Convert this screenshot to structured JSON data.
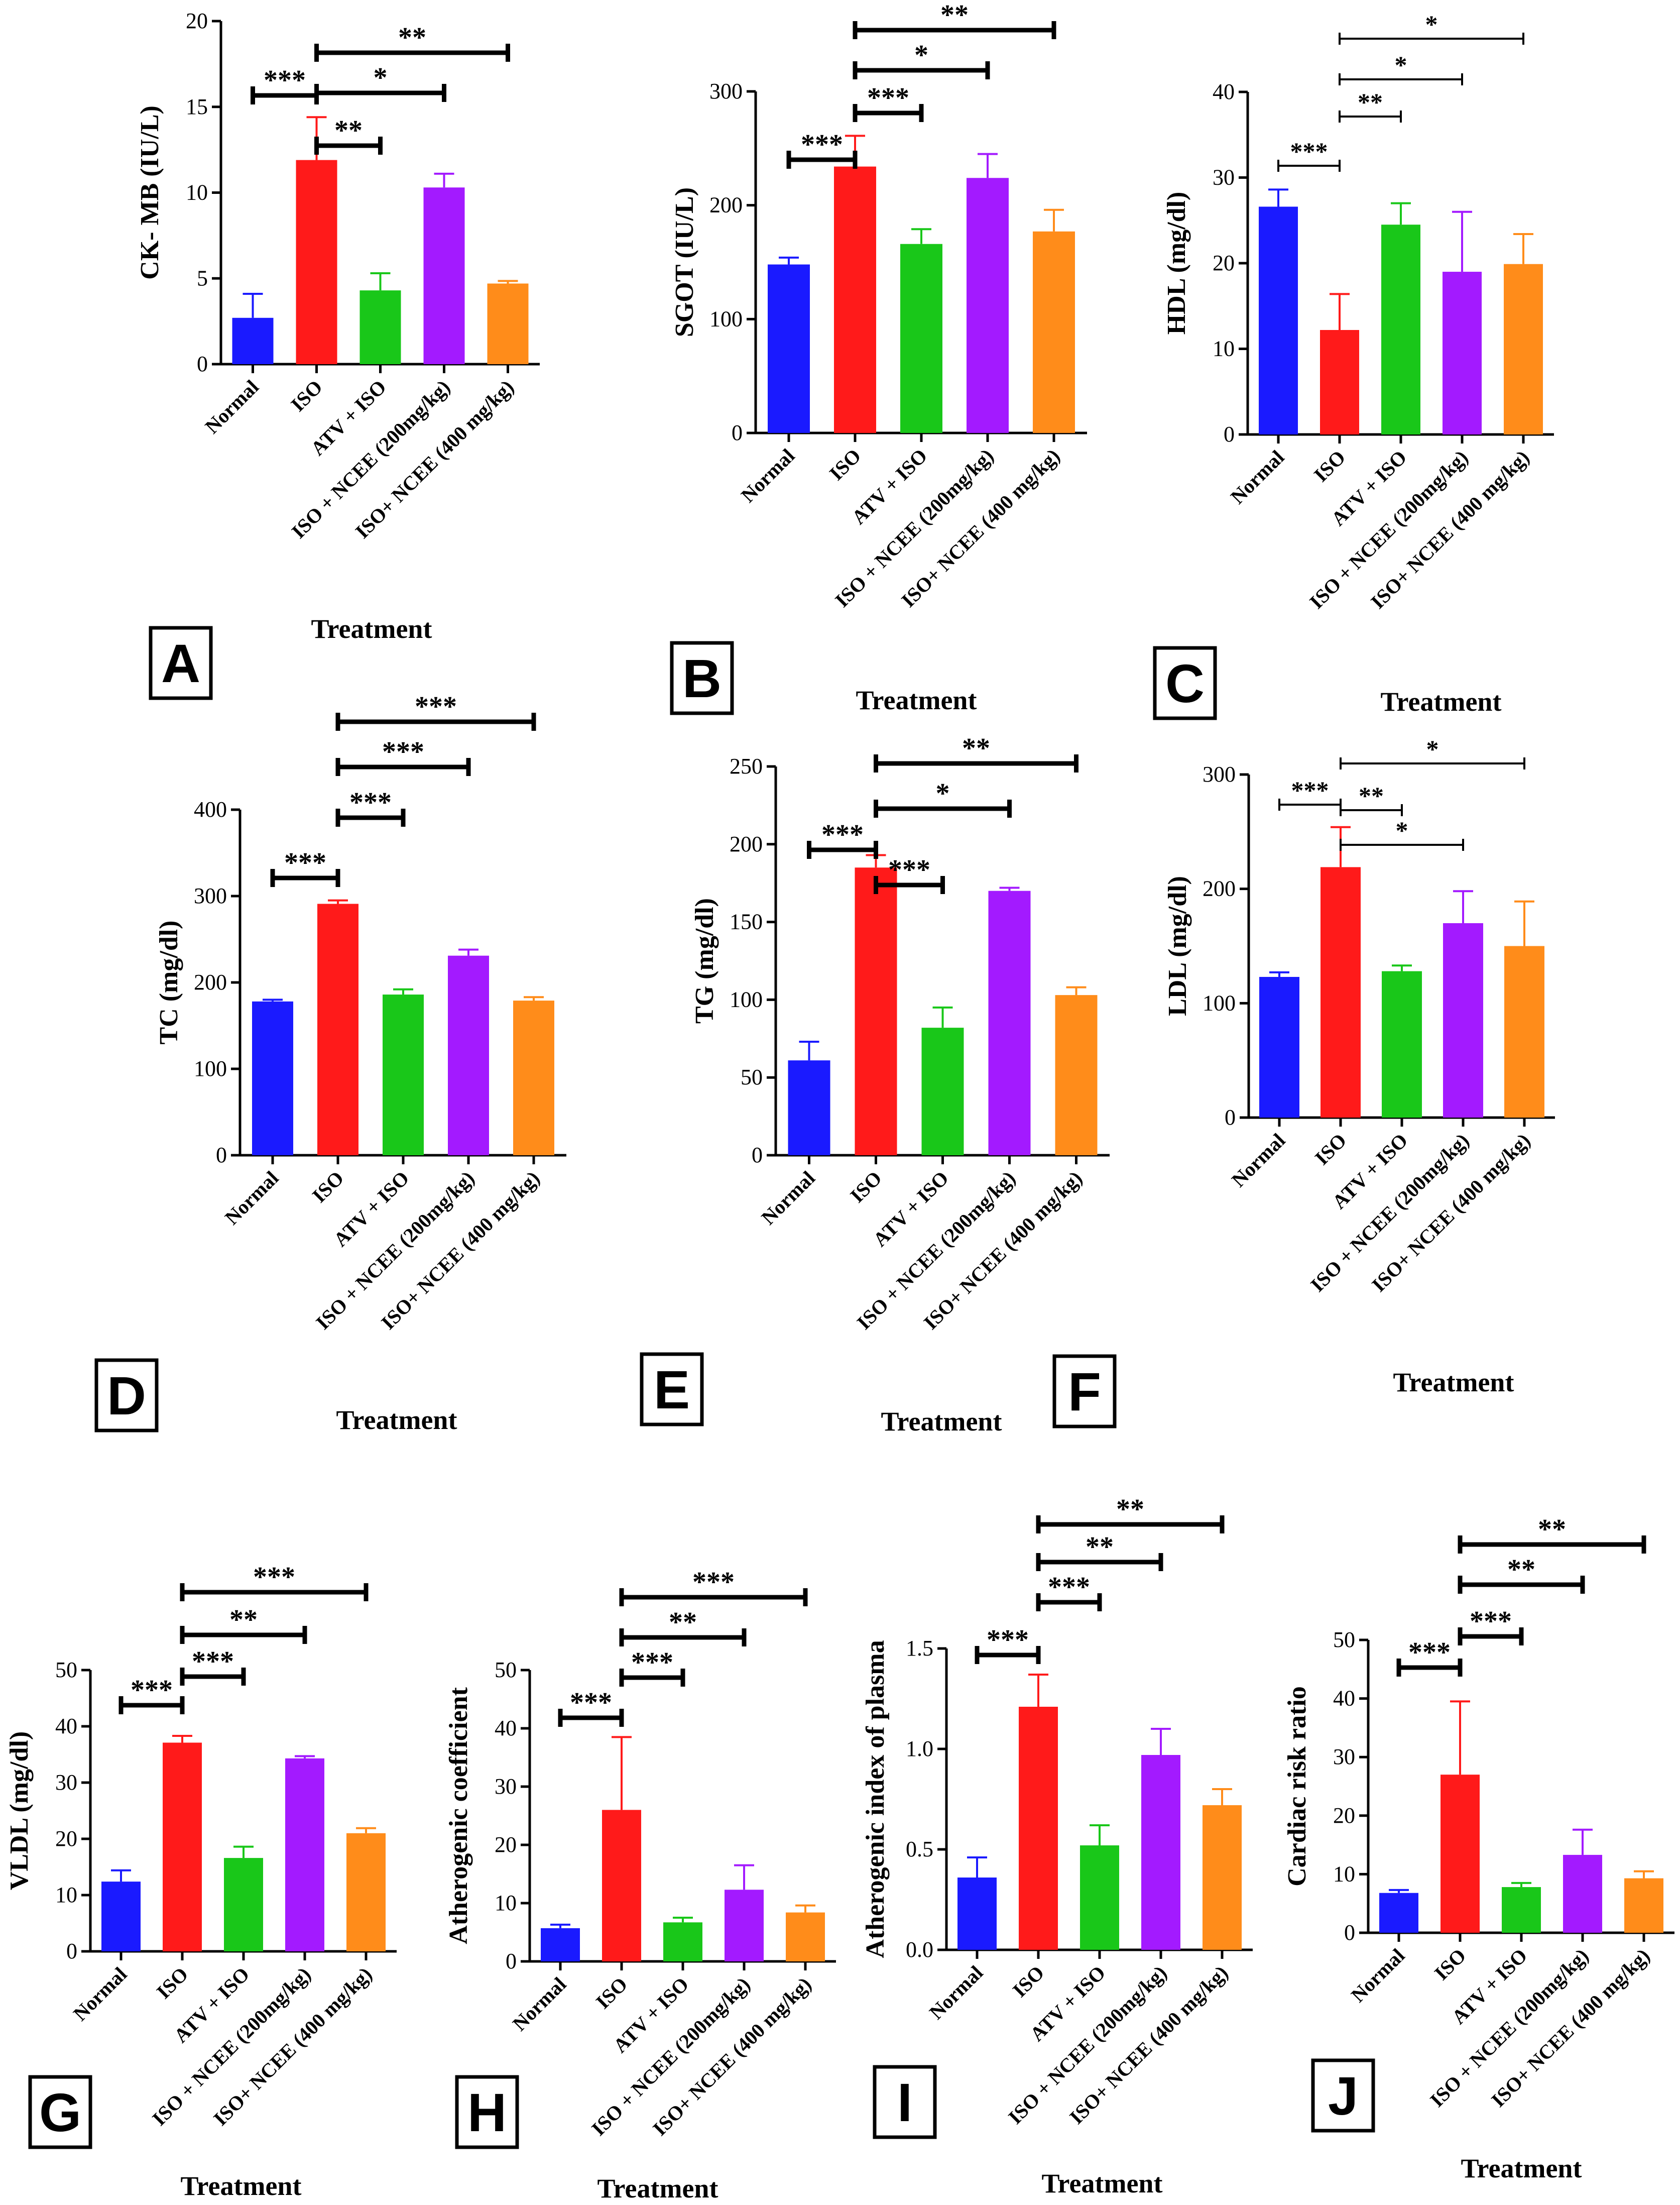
{
  "figure": {
    "xlabel": "Treatment",
    "categories": [
      "Normal",
      "ISO",
      "ATV + ISO",
      "ISO + NCEE (200mg/kg)",
      "ISO+ NCEE (400 mg/kg)"
    ],
    "colors": [
      "#1a1aff",
      "#ff1a1a",
      "#19c719",
      "#a31aff",
      "#ff8c1a"
    ]
  },
  "chart_data": [
    {
      "panel": "A",
      "type": "bar",
      "ylabel": "CK- MB (IU/L)",
      "ylim": [
        0,
        20
      ],
      "ticks": [
        0,
        5,
        10,
        15,
        20
      ],
      "values": [
        2.7,
        11.9,
        4.3,
        10.3,
        4.7
      ],
      "errors": [
        1.4,
        2.5,
        1.0,
        0.8,
        0.15
      ],
      "significance": [
        {
          "from": 0,
          "to": 1,
          "label": "***"
        },
        {
          "from": 1,
          "to": 2,
          "label": "**"
        },
        {
          "from": 1,
          "to": 3,
          "label": "*"
        },
        {
          "from": 1,
          "to": 4,
          "label": "**"
        }
      ]
    },
    {
      "panel": "B",
      "type": "bar",
      "ylabel": "SGOT (IU/L)",
      "ylim": [
        0,
        300
      ],
      "ticks": [
        0,
        100,
        200,
        300
      ],
      "values": [
        148,
        234,
        166,
        224,
        177
      ],
      "errors": [
        6,
        27,
        13,
        21,
        19
      ],
      "significance": [
        {
          "from": 0,
          "to": 1,
          "label": "***"
        },
        {
          "from": 1,
          "to": 2,
          "label": "***"
        },
        {
          "from": 1,
          "to": 3,
          "label": "*"
        },
        {
          "from": 1,
          "to": 4,
          "label": "**"
        }
      ]
    },
    {
      "panel": "C",
      "type": "bar",
      "ylabel": "HDL (mg/dl)",
      "ylim": [
        0,
        40
      ],
      "ticks": [
        0,
        10,
        20,
        30,
        40
      ],
      "values": [
        26.6,
        12.2,
        24.5,
        19.0,
        19.9
      ],
      "errors": [
        2.0,
        4.2,
        2.5,
        7.0,
        3.5
      ],
      "significance": [
        {
          "from": 0,
          "to": 1,
          "label": "***"
        },
        {
          "from": 1,
          "to": 2,
          "label": "**"
        },
        {
          "from": 1,
          "to": 3,
          "label": "*"
        },
        {
          "from": 1,
          "to": 4,
          "label": "*"
        }
      ]
    },
    {
      "panel": "D",
      "type": "bar",
      "ylabel": "TC (mg/dl)",
      "ylim": [
        0,
        400
      ],
      "ticks": [
        0,
        100,
        200,
        300,
        400
      ],
      "values": [
        178,
        291,
        186,
        231,
        179
      ],
      "errors": [
        2,
        4,
        6,
        7,
        4
      ],
      "significance": [
        {
          "from": 0,
          "to": 1,
          "label": "***"
        },
        {
          "from": 1,
          "to": 2,
          "label": "***"
        },
        {
          "from": 1,
          "to": 3,
          "label": "***"
        },
        {
          "from": 1,
          "to": 4,
          "label": "***"
        }
      ]
    },
    {
      "panel": "E",
      "type": "bar",
      "ylabel": "TG (mg/dl)",
      "ylim": [
        0,
        250
      ],
      "ticks": [
        0,
        50,
        100,
        150,
        200,
        250
      ],
      "values": [
        61,
        185,
        82,
        170,
        103
      ],
      "errors": [
        12,
        8,
        13,
        2,
        5
      ],
      "significance": [
        {
          "from": 0,
          "to": 1,
          "label": "***"
        },
        {
          "from": 1,
          "to": 2,
          "label": "***"
        },
        {
          "from": 1,
          "to": 3,
          "label": "*"
        },
        {
          "from": 1,
          "to": 4,
          "label": "**"
        }
      ]
    },
    {
      "panel": "F",
      "type": "bar",
      "ylabel": "LDL (mg/dl)",
      "ylim": [
        0,
        300
      ],
      "ticks": [
        0,
        100,
        200,
        300
      ],
      "values": [
        123,
        219,
        128,
        170,
        150
      ],
      "errors": [
        4,
        35,
        5,
        28,
        39
      ],
      "significance": [
        {
          "from": 0,
          "to": 1,
          "label": "***"
        },
        {
          "from": 1,
          "to": 2,
          "label": "**"
        },
        {
          "from": 1,
          "to": 3,
          "label": "*"
        },
        {
          "from": 1,
          "to": 4,
          "label": "*"
        }
      ]
    },
    {
      "panel": "G",
      "type": "bar",
      "ylabel": "VLDL (mg/dl)",
      "ylim": [
        0,
        50
      ],
      "ticks": [
        0,
        10,
        20,
        30,
        40,
        50
      ],
      "values": [
        12.4,
        37.1,
        16.6,
        34.3,
        21.0
      ],
      "errors": [
        2.0,
        1.2,
        2.0,
        0.4,
        0.9
      ],
      "significance": [
        {
          "from": 0,
          "to": 1,
          "label": "***"
        },
        {
          "from": 1,
          "to": 2,
          "label": "***"
        },
        {
          "from": 1,
          "to": 3,
          "label": "**"
        },
        {
          "from": 1,
          "to": 4,
          "label": "***"
        }
      ]
    },
    {
      "panel": "H",
      "type": "bar",
      "ylabel": "Atherogenic coefficient",
      "ylim": [
        0,
        50
      ],
      "ticks": [
        0,
        10,
        20,
        30,
        40,
        50
      ],
      "values": [
        5.7,
        26.0,
        6.7,
        12.3,
        8.4
      ],
      "errors": [
        0.6,
        12.5,
        0.8,
        4.2,
        1.2
      ],
      "significance": [
        {
          "from": 0,
          "to": 1,
          "label": "***"
        },
        {
          "from": 1,
          "to": 2,
          "label": "***"
        },
        {
          "from": 1,
          "to": 3,
          "label": "**"
        },
        {
          "from": 1,
          "to": 4,
          "label": "***"
        }
      ]
    },
    {
      "panel": "I",
      "type": "bar",
      "ylabel": "Atherogenic index of plasma",
      "ylim": [
        0,
        1.5
      ],
      "ticks": [
        "0.0",
        "0.5",
        "1.0",
        "1.5"
      ],
      "values": [
        0.36,
        1.21,
        0.52,
        0.97,
        0.72
      ],
      "errors": [
        0.1,
        0.16,
        0.1,
        0.13,
        0.08
      ],
      "significance": [
        {
          "from": 0,
          "to": 1,
          "label": "***"
        },
        {
          "from": 1,
          "to": 2,
          "label": "***"
        },
        {
          "from": 1,
          "to": 3,
          "label": "**"
        },
        {
          "from": 1,
          "to": 4,
          "label": "**"
        }
      ]
    },
    {
      "panel": "J",
      "type": "bar",
      "ylabel": "Cardiac risk ratio",
      "ylim": [
        0,
        50
      ],
      "ticks": [
        0,
        10,
        20,
        30,
        40,
        50
      ],
      "values": [
        6.8,
        27.0,
        7.8,
        13.3,
        9.3
      ],
      "errors": [
        0.5,
        12.5,
        0.7,
        4.3,
        1.2
      ],
      "significance": [
        {
          "from": 0,
          "to": 1,
          "label": "***"
        },
        {
          "from": 1,
          "to": 2,
          "label": "***"
        },
        {
          "from": 1,
          "to": 3,
          "label": "**"
        },
        {
          "from": 1,
          "to": 4,
          "label": "**"
        }
      ]
    }
  ]
}
